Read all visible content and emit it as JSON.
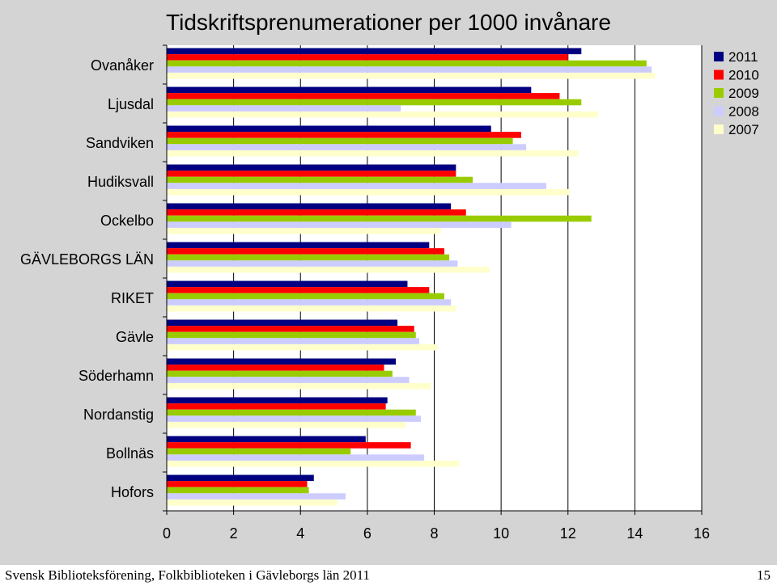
{
  "footer": {
    "text": "Svensk Biblioteksförening, Folkbiblioteken i Gävleborgs län 2011",
    "page_number": "15"
  },
  "chart_data": {
    "type": "bar",
    "orientation": "horizontal",
    "title": "Tidskriftsprenumerationer per 1000 invånare",
    "xlabel": "",
    "ylabel": "",
    "xlim": [
      0,
      16
    ],
    "xticks": [
      "0",
      "2",
      "4",
      "6",
      "8",
      "10",
      "12",
      "14",
      "16"
    ],
    "grid": "vertical",
    "legend_position": "top-right",
    "categories": [
      "Ovanåker",
      "Ljusdal",
      "Sandviken",
      "Hudiksvall",
      "Ockelbo",
      "GÄVLEBORGS LÄN",
      "RIKET",
      "Gävle",
      "Söderhamn",
      "Nordanstig",
      "Bollnäs",
      "Hofors"
    ],
    "series": [
      {
        "name": "2011",
        "color": "#000080",
        "values": [
          12.4,
          10.9,
          9.7,
          8.65,
          8.5,
          7.85,
          7.2,
          6.9,
          6.85,
          6.6,
          5.95,
          4.4
        ]
      },
      {
        "name": "2010",
        "color": "#ff0000",
        "values": [
          12.0,
          11.75,
          10.6,
          8.65,
          8.95,
          8.3,
          7.85,
          7.4,
          6.5,
          6.55,
          7.3,
          4.2
        ]
      },
      {
        "name": "2009",
        "color": "#99cc00",
        "values": [
          14.35,
          12.4,
          10.35,
          9.15,
          12.7,
          8.45,
          8.3,
          7.45,
          6.75,
          7.45,
          5.5,
          4.25
        ]
      },
      {
        "name": "2008",
        "color": "#ccccff",
        "values": [
          14.5,
          7.0,
          10.75,
          11.35,
          10.3,
          8.7,
          8.5,
          7.55,
          7.25,
          7.6,
          7.7,
          5.35
        ]
      },
      {
        "name": "2007",
        "color": "#ffffcc",
        "values": [
          14.6,
          12.9,
          12.3,
          12.05,
          8.2,
          9.65,
          8.65,
          8.1,
          7.9,
          7.15,
          8.75,
          5.1
        ]
      }
    ]
  }
}
